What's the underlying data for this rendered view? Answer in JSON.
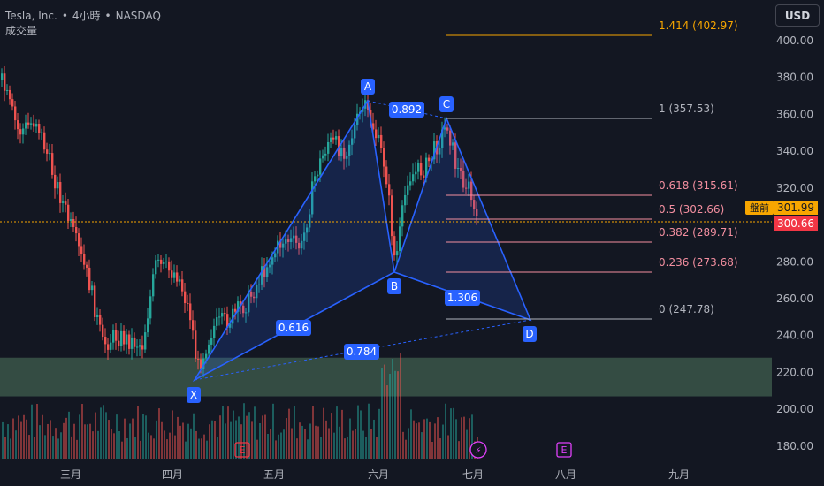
{
  "header": {
    "symbol": "Tesla, Inc.",
    "interval": "4小時",
    "exchange": "NASDAQ",
    "separator": "•",
    "volume_label": "成交量"
  },
  "currency_button": "USD",
  "colors": {
    "background": "#131722",
    "up": "#26a69a",
    "down": "#ef5350",
    "pattern": "#2962ff",
    "zone": "#50785e",
    "axis_text": "#b2b5be",
    "fib_orange": "#f7a600",
    "fib_red": "#f48fa0",
    "fib_gray": "#b2b5be"
  },
  "chart_data": {
    "type": "candlestick",
    "symbol": "TSLA",
    "timeframe": "4h",
    "y_axis": {
      "ticks": [
        180,
        200,
        220,
        240,
        260,
        280,
        300,
        320,
        340,
        360,
        380,
        400
      ],
      "tick_labels": [
        "180.00",
        "200.00",
        "220.00",
        "240.00",
        "260.00",
        "280.00",
        "300.00",
        "320.00",
        "340.00",
        "360.00",
        "380.00",
        "400.00"
      ],
      "ylim": [
        172,
        420
      ]
    },
    "x_axis": {
      "labels": [
        "三月",
        "四月",
        "五月",
        "六月",
        "七月",
        "八月",
        "九月"
      ]
    },
    "price_tags": [
      {
        "label": "盤前",
        "value": "301.99",
        "color": "#f7a600"
      },
      {
        "label": "",
        "value": "300.66",
        "color": "#f23645"
      }
    ],
    "pattern": {
      "name": "harmonic XABCD",
      "points": [
        {
          "label": "X",
          "date": "四月中",
          "price": 214
        },
        {
          "label": "A",
          "date": "五月底",
          "price": 367
        },
        {
          "label": "B",
          "date": "六月初",
          "price": 274
        },
        {
          "label": "C",
          "date": "六月中",
          "price": 358
        },
        {
          "label": "D",
          "date": "七月初",
          "price": 247.78
        }
      ],
      "ratios": [
        {
          "text": "0.616"
        },
        {
          "text": "0.892"
        },
        {
          "text": "1.306"
        },
        {
          "text": "0.784"
        }
      ]
    },
    "fibonacci": [
      {
        "label": "1.414 (402.97)",
        "price": 402.97,
        "color": "#f7a600"
      },
      {
        "label": "1 (357.53)",
        "price": 357.53,
        "color": "#b2b5be"
      },
      {
        "label": "0.618 (315.61)",
        "price": 315.61,
        "color": "#f48fa0"
      },
      {
        "label": "0.5 (302.66)",
        "price": 302.66,
        "color": "#f48fa0"
      },
      {
        "label": "0.382 (289.71)",
        "price": 289.71,
        "color": "#f48fa0"
      },
      {
        "label": "0.236 (273.68)",
        "price": 273.68,
        "color": "#f48fa0"
      },
      {
        "label": "0 (247.78)",
        "price": 247.78,
        "color": "#b2b5be"
      }
    ],
    "zone": {
      "from": 207,
      "to": 228
    },
    "current_price": 300.66,
    "events": [
      {
        "type": "earnings",
        "label": "E",
        "position": "四月底"
      },
      {
        "type": "dividend/split",
        "label": "⚡",
        "position": "七月初"
      },
      {
        "type": "earnings",
        "label": "E",
        "position": "七月底"
      }
    ]
  }
}
